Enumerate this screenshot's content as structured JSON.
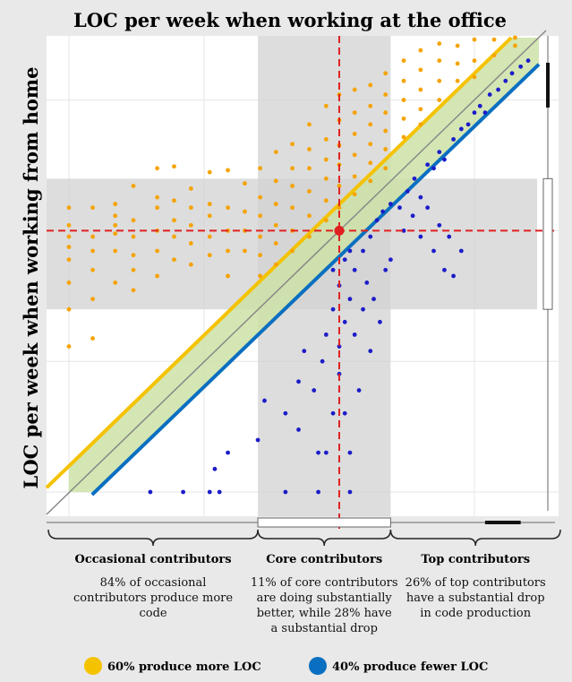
{
  "chart_data": {
    "type": "scatter",
    "title": "LOC per week when working at the office",
    "xlabel": "LOC per week when working at the office",
    "ylabel": "LOC per week when working from home",
    "axis_scale": "log",
    "grid": true,
    "reference_point": {
      "x": 1000,
      "y": 1000
    },
    "band_factor": 1.6,
    "contributor_groups": [
      {
        "name": "Occasional contributors",
        "x_range": [
          10,
          250
        ],
        "description_lines": [
          "84% of occasional",
          "contributors produce more",
          "code"
        ]
      },
      {
        "name": "Core contributors",
        "x_range": [
          250,
          2400
        ],
        "description_lines": [
          "11% of core contributors",
          "are doing substantially",
          "better, while 28% have",
          "a substantial drop"
        ]
      },
      {
        "name": "Top contributors",
        "x_range": [
          2400,
          30000
        ],
        "description_lines": [
          "26% of top contributors",
          "have a substantial drop",
          "in code production"
        ]
      }
    ],
    "series": [
      {
        "name": "60% produce more LOC",
        "color": "#f5a300",
        "points": [
          [
            10,
            1500
          ],
          [
            10,
            1100
          ],
          [
            10,
            900
          ],
          [
            10,
            750
          ],
          [
            10,
            600
          ],
          [
            10,
            400
          ],
          [
            10,
            250
          ],
          [
            10,
            130
          ],
          [
            15,
            1500
          ],
          [
            15,
            900
          ],
          [
            15,
            700
          ],
          [
            15,
            500
          ],
          [
            15,
            300
          ],
          [
            15,
            150
          ],
          [
            22,
            1600
          ],
          [
            22,
            1300
          ],
          [
            22,
            1100
          ],
          [
            22,
            950
          ],
          [
            22,
            700
          ],
          [
            22,
            400
          ],
          [
            30,
            2200
          ],
          [
            30,
            1200
          ],
          [
            30,
            900
          ],
          [
            30,
            650
          ],
          [
            30,
            500
          ],
          [
            30,
            350
          ],
          [
            45,
            3000
          ],
          [
            45,
            1800
          ],
          [
            45,
            1500
          ],
          [
            45,
            1000
          ],
          [
            45,
            700
          ],
          [
            45,
            450
          ],
          [
            60,
            3100
          ],
          [
            60,
            1700
          ],
          [
            60,
            1200
          ],
          [
            60,
            900
          ],
          [
            60,
            600
          ],
          [
            80,
            2100
          ],
          [
            80,
            1500
          ],
          [
            80,
            1100
          ],
          [
            80,
            800
          ],
          [
            80,
            550
          ],
          [
            110,
            2800
          ],
          [
            110,
            1600
          ],
          [
            110,
            1300
          ],
          [
            110,
            900
          ],
          [
            110,
            650
          ],
          [
            150,
            2900
          ],
          [
            150,
            1500
          ],
          [
            150,
            1000
          ],
          [
            150,
            700
          ],
          [
            150,
            450
          ],
          [
            200,
            2300
          ],
          [
            200,
            1400
          ],
          [
            200,
            1000
          ],
          [
            200,
            700
          ],
          [
            260,
            3000
          ],
          [
            260,
            1800
          ],
          [
            260,
            1300
          ],
          [
            260,
            900
          ],
          [
            260,
            650
          ],
          [
            260,
            450
          ],
          [
            340,
            4000
          ],
          [
            340,
            2400
          ],
          [
            340,
            1600
          ],
          [
            340,
            1100
          ],
          [
            340,
            800
          ],
          [
            340,
            550
          ],
          [
            450,
            4600
          ],
          [
            450,
            3000
          ],
          [
            450,
            2200
          ],
          [
            450,
            1500
          ],
          [
            450,
            1000
          ],
          [
            450,
            700
          ],
          [
            600,
            6500
          ],
          [
            600,
            4200
          ],
          [
            600,
            3000
          ],
          [
            600,
            2000
          ],
          [
            600,
            1300
          ],
          [
            600,
            900
          ],
          [
            800,
            9000
          ],
          [
            800,
            5000
          ],
          [
            800,
            3500
          ],
          [
            800,
            2500
          ],
          [
            800,
            1700
          ],
          [
            800,
            1200
          ],
          [
            1000,
            11000
          ],
          [
            1000,
            7000
          ],
          [
            1000,
            4500
          ],
          [
            1000,
            3200
          ],
          [
            1000,
            2200
          ],
          [
            1000,
            1500
          ],
          [
            1300,
            12000
          ],
          [
            1300,
            8000
          ],
          [
            1300,
            5500
          ],
          [
            1300,
            3800
          ],
          [
            1300,
            2600
          ],
          [
            1300,
            1900
          ],
          [
            1700,
            13000
          ],
          [
            1700,
            9000
          ],
          [
            1700,
            6500
          ],
          [
            1700,
            4600
          ],
          [
            1700,
            3300
          ],
          [
            1700,
            2400
          ],
          [
            2200,
            16000
          ],
          [
            2200,
            11000
          ],
          [
            2200,
            8000
          ],
          [
            2200,
            5800
          ],
          [
            2200,
            4200
          ],
          [
            2200,
            3000
          ],
          [
            3000,
            20000
          ],
          [
            3000,
            14000
          ],
          [
            3000,
            10000
          ],
          [
            3000,
            7200
          ],
          [
            3000,
            5200
          ],
          [
            4000,
            24000
          ],
          [
            4000,
            17000
          ],
          [
            4000,
            12000
          ],
          [
            4000,
            8500
          ],
          [
            4000,
            6500
          ],
          [
            5500,
            27000
          ],
          [
            5500,
            20000
          ],
          [
            5500,
            14000
          ],
          [
            5500,
            10000
          ],
          [
            7500,
            26000
          ],
          [
            7500,
            19000
          ],
          [
            7500,
            14000
          ],
          [
            10000,
            29000
          ],
          [
            10000,
            20000
          ],
          [
            10000,
            15000
          ],
          [
            14000,
            29000
          ],
          [
            14000,
            22000
          ],
          [
            20000,
            30000
          ],
          [
            20000,
            26000
          ]
        ]
      },
      {
        "name": "40% produce fewer LOC",
        "color": "#1c1cc9",
        "points": [
          [
            40,
            10
          ],
          [
            70,
            10
          ],
          [
            110,
            10
          ],
          [
            130,
            10
          ],
          [
            400,
            10
          ],
          [
            700,
            10
          ],
          [
            1200,
            10
          ],
          [
            120,
            15
          ],
          [
            150,
            20
          ],
          [
            250,
            25
          ],
          [
            280,
            50
          ],
          [
            400,
            40
          ],
          [
            500,
            30
          ],
          [
            500,
            70
          ],
          [
            550,
            120
          ],
          [
            650,
            60
          ],
          [
            700,
            20
          ],
          [
            750,
            100
          ],
          [
            800,
            20
          ],
          [
            900,
            40
          ],
          [
            1000,
            80
          ],
          [
            1100,
            40
          ],
          [
            1200,
            20
          ],
          [
            800,
            160
          ],
          [
            900,
            250
          ],
          [
            1000,
            130
          ],
          [
            1100,
            200
          ],
          [
            1200,
            300
          ],
          [
            1300,
            160
          ],
          [
            1400,
            60
          ],
          [
            1500,
            250
          ],
          [
            1600,
            400
          ],
          [
            1700,
            120
          ],
          [
            1800,
            300
          ],
          [
            2000,
            200
          ],
          [
            2200,
            500
          ],
          [
            2400,
            600
          ],
          [
            900,
            500
          ],
          [
            1000,
            380
          ],
          [
            1100,
            600
          ],
          [
            1200,
            700
          ],
          [
            1300,
            500
          ],
          [
            1500,
            700
          ],
          [
            1700,
            900
          ],
          [
            1900,
            1200
          ],
          [
            2100,
            1400
          ],
          [
            2400,
            1600
          ],
          [
            2800,
            1500
          ],
          [
            3200,
            2000
          ],
          [
            3600,
            2500
          ],
          [
            4000,
            1800
          ],
          [
            4500,
            3200
          ],
          [
            5000,
            3000
          ],
          [
            5500,
            4000
          ],
          [
            6000,
            3500
          ],
          [
            7000,
            5000
          ],
          [
            8000,
            6000
          ],
          [
            9000,
            6500
          ],
          [
            10000,
            8000
          ],
          [
            11000,
            9000
          ],
          [
            12000,
            8000
          ],
          [
            13000,
            11000
          ],
          [
            15000,
            12000
          ],
          [
            17000,
            14000
          ],
          [
            19000,
            16000
          ],
          [
            22000,
            18000
          ],
          [
            25000,
            20000
          ],
          [
            3000,
            1000
          ],
          [
            3500,
            1300
          ],
          [
            4000,
            900
          ],
          [
            4500,
            1500
          ],
          [
            5000,
            700
          ],
          [
            5500,
            1100
          ],
          [
            6000,
            500
          ],
          [
            6500,
            900
          ],
          [
            7000,
            450
          ],
          [
            8000,
            700
          ]
        ]
      }
    ],
    "legend": {
      "placement": "bottom",
      "items": [
        {
          "label": "60% produce more LOC",
          "color": "#f5c200"
        },
        {
          "label": "40% produce fewer LOC",
          "color": "#0a6fc0"
        }
      ]
    },
    "colors": {
      "upper_line": "#f5c200",
      "lower_line": "#0a6fc0",
      "band_fill": "#cce2a6",
      "reference_lines": "#e02020",
      "diagonal": "#888888",
      "shade": "#d2d2d2"
    }
  }
}
